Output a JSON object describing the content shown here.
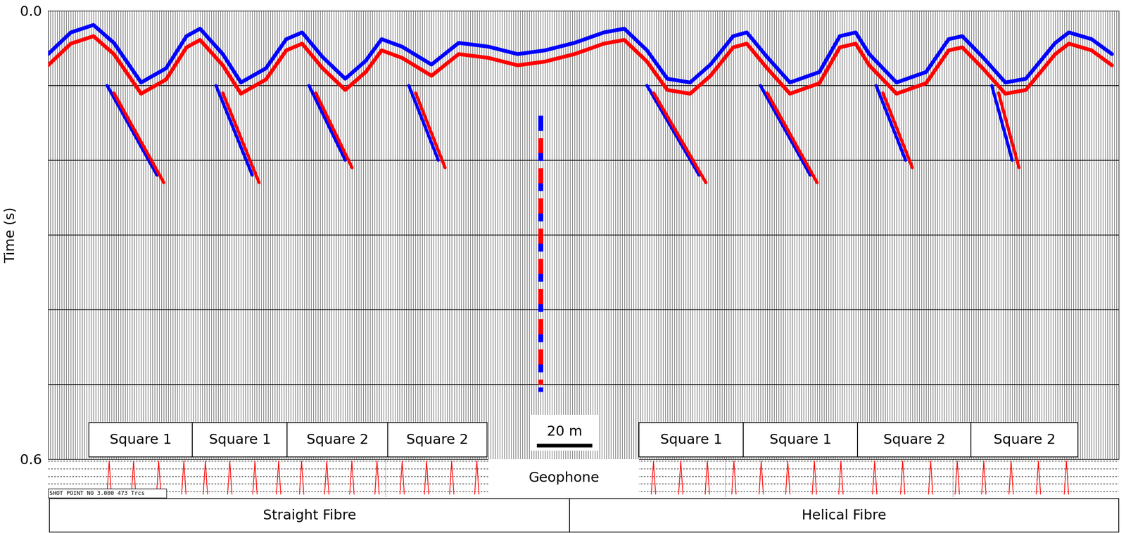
{
  "chart_data": {
    "type": "seismic_gather",
    "ylabel": "Time (s)",
    "ylim": [
      0.6,
      0.0
    ],
    "yticks": [
      {
        "value": 0.0,
        "label": "0.0"
      },
      0.6
    ],
    "xlim": [
      1,
      473
    ],
    "tick_labels": "y",
    "traces": 473,
    "timing_lines": [
      0.1,
      0.2,
      0.3,
      0.4,
      0.5
    ],
    "events": [
      {
        "color": "#0000ff",
        "line_style": "solid",
        "trace": [
          1,
          11,
          21,
          30,
          42,
          53,
          62,
          68,
          78,
          86,
          97,
          106,
          113,
          122,
          132,
          141,
          148,
          157,
          170,
          182,
          195,
          208,
          220,
          233,
          246,
          255,
          265,
          274,
          284,
          293,
          303,
          309,
          318,
          328,
          341,
          350,
          357,
          363,
          375,
          388,
          398,
          404,
          413,
          423,
          432,
          445,
          451,
          461,
          470
        ],
        "time": [
          0.058,
          0.029,
          0.019,
          0.043,
          0.096,
          0.077,
          0.034,
          0.024,
          0.058,
          0.096,
          0.077,
          0.038,
          0.029,
          0.062,
          0.091,
          0.067,
          0.038,
          0.048,
          0.072,
          0.043,
          0.048,
          0.058,
          0.053,
          0.043,
          0.029,
          0.024,
          0.053,
          0.091,
          0.096,
          0.072,
          0.034,
          0.029,
          0.062,
          0.096,
          0.082,
          0.034,
          0.029,
          0.058,
          0.096,
          0.082,
          0.038,
          0.034,
          0.062,
          0.096,
          0.091,
          0.043,
          0.029,
          0.038,
          0.058
        ]
      },
      {
        "color": "#ff0000",
        "line_style": "solid",
        "trace": [
          1,
          11,
          21,
          30,
          42,
          53,
          62,
          68,
          78,
          86,
          97,
          106,
          113,
          122,
          132,
          141,
          148,
          157,
          170,
          182,
          195,
          208,
          220,
          233,
          246,
          255,
          265,
          274,
          284,
          293,
          303,
          309,
          318,
          328,
          341,
          350,
          357,
          363,
          375,
          388,
          398,
          404,
          413,
          423,
          432,
          445,
          451,
          461,
          470
        ],
        "time": [
          0.073,
          0.044,
          0.034,
          0.058,
          0.111,
          0.092,
          0.049,
          0.039,
          0.073,
          0.111,
          0.092,
          0.053,
          0.044,
          0.077,
          0.106,
          0.082,
          0.053,
          0.063,
          0.087,
          0.058,
          0.063,
          0.073,
          0.068,
          0.058,
          0.044,
          0.039,
          0.068,
          0.106,
          0.111,
          0.087,
          0.049,
          0.044,
          0.077,
          0.111,
          0.097,
          0.049,
          0.044,
          0.073,
          0.111,
          0.097,
          0.053,
          0.049,
          0.077,
          0.111,
          0.106,
          0.058,
          0.044,
          0.053,
          0.073
        ]
      },
      {
        "color": "#0000ff",
        "line_style": "solid",
        "trace": [
          27,
          49
        ],
        "time": [
          0.1,
          0.22
        ]
      },
      {
        "color": "#ff0000",
        "line_style": "solid",
        "trace": [
          30,
          52
        ],
        "time": [
          0.11,
          0.23
        ]
      },
      {
        "color": "#0000ff",
        "line_style": "solid",
        "trace": [
          75,
          91
        ],
        "time": [
          0.1,
          0.22
        ]
      },
      {
        "color": "#ff0000",
        "line_style": "solid",
        "trace": [
          78,
          94
        ],
        "time": [
          0.11,
          0.23
        ]
      },
      {
        "color": "#0000ff",
        "line_style": "solid",
        "trace": [
          116,
          132
        ],
        "time": [
          0.1,
          0.2
        ]
      },
      {
        "color": "#ff0000",
        "line_style": "solid",
        "trace": [
          119,
          135
        ],
        "time": [
          0.11,
          0.21
        ]
      },
      {
        "color": "#0000ff",
        "line_style": "solid",
        "trace": [
          160,
          173
        ],
        "time": [
          0.1,
          0.2
        ]
      },
      {
        "color": "#ff0000",
        "line_style": "solid",
        "trace": [
          163,
          176
        ],
        "time": [
          0.11,
          0.21
        ]
      },
      {
        "color": "#0000ff",
        "line_style": "solid",
        "trace": [
          265,
          288
        ],
        "time": [
          0.1,
          0.22
        ]
      },
      {
        "color": "#ff0000",
        "line_style": "solid",
        "trace": [
          268,
          291
        ],
        "time": [
          0.11,
          0.23
        ]
      },
      {
        "color": "#0000ff",
        "line_style": "solid",
        "trace": [
          315,
          337
        ],
        "time": [
          0.1,
          0.22
        ]
      },
      {
        "color": "#ff0000",
        "line_style": "solid",
        "trace": [
          318,
          340
        ],
        "time": [
          0.11,
          0.23
        ]
      },
      {
        "color": "#0000ff",
        "line_style": "solid",
        "trace": [
          366,
          379
        ],
        "time": [
          0.1,
          0.2
        ]
      },
      {
        "color": "#ff0000",
        "line_style": "solid",
        "trace": [
          369,
          382
        ],
        "time": [
          0.11,
          0.21
        ]
      },
      {
        "color": "#0000ff",
        "line_style": "solid",
        "trace": [
          417,
          426
        ],
        "time": [
          0.1,
          0.2
        ]
      },
      {
        "color": "#ff0000",
        "line_style": "solid",
        "trace": [
          420,
          429
        ],
        "time": [
          0.11,
          0.21
        ]
      },
      {
        "color": "#0000ff",
        "line_style": "dashed",
        "trace": [
          218,
          218
        ],
        "time": [
          0.14,
          0.51
        ]
      },
      {
        "color": "#ff0000",
        "line_style": "dashed",
        "trace": [
          218,
          218
        ],
        "time": [
          0.15,
          0.5
        ]
      }
    ],
    "shot_label": "SHOT POINT NO 3.000 473 Trcs",
    "scale_bar": "20 m",
    "geophone": "Geophone",
    "sections": [
      {
        "label": "Straight Fibre",
        "squares": [
          "Square 1",
          "Square 1",
          "Square 2",
          "Square 2"
        ]
      },
      {
        "label": "Helical Fibre",
        "squares": [
          "Square 1",
          "Square 1",
          "Square 2",
          "Square 2"
        ]
      }
    ]
  }
}
